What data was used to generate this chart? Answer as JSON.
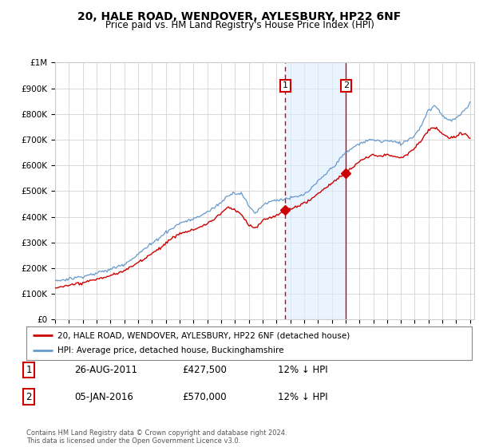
{
  "title": "20, HALE ROAD, WENDOVER, AYLESBURY, HP22 6NF",
  "subtitle": "Price paid vs. HM Land Registry's House Price Index (HPI)",
  "ylabel_ticks": [
    "£0",
    "£100K",
    "£200K",
    "£300K",
    "£400K",
    "£500K",
    "£600K",
    "£700K",
    "£800K",
    "£900K",
    "£1M"
  ],
  "ytick_vals": [
    0,
    100000,
    200000,
    300000,
    400000,
    500000,
    600000,
    700000,
    800000,
    900000,
    1000000
  ],
  "ylim": [
    0,
    1000000
  ],
  "year_start": 1995,
  "year_end": 2025,
  "hpi_color": "#6699cc",
  "hpi_fill_color": "#ddeeff",
  "property_color": "#cc0000",
  "transaction1_date": 2011.65,
  "transaction1_price": 427500,
  "transaction2_date": 2016.02,
  "transaction2_price": 570000,
  "legend_label1": "20, HALE ROAD, WENDOVER, AYLESBURY, HP22 6NF (detached house)",
  "legend_label2": "HPI: Average price, detached house, Buckinghamshire",
  "table_row1": [
    "1",
    "26-AUG-2011",
    "£427,500",
    "12% ↓ HPI"
  ],
  "table_row2": [
    "2",
    "05-JAN-2016",
    "£570,000",
    "12% ↓ HPI"
  ],
  "footer": "Contains HM Land Registry data © Crown copyright and database right 2024.\nThis data is licensed under the Open Government Licence v3.0.",
  "background_color": "#ffffff",
  "grid_color": "#cccccc"
}
